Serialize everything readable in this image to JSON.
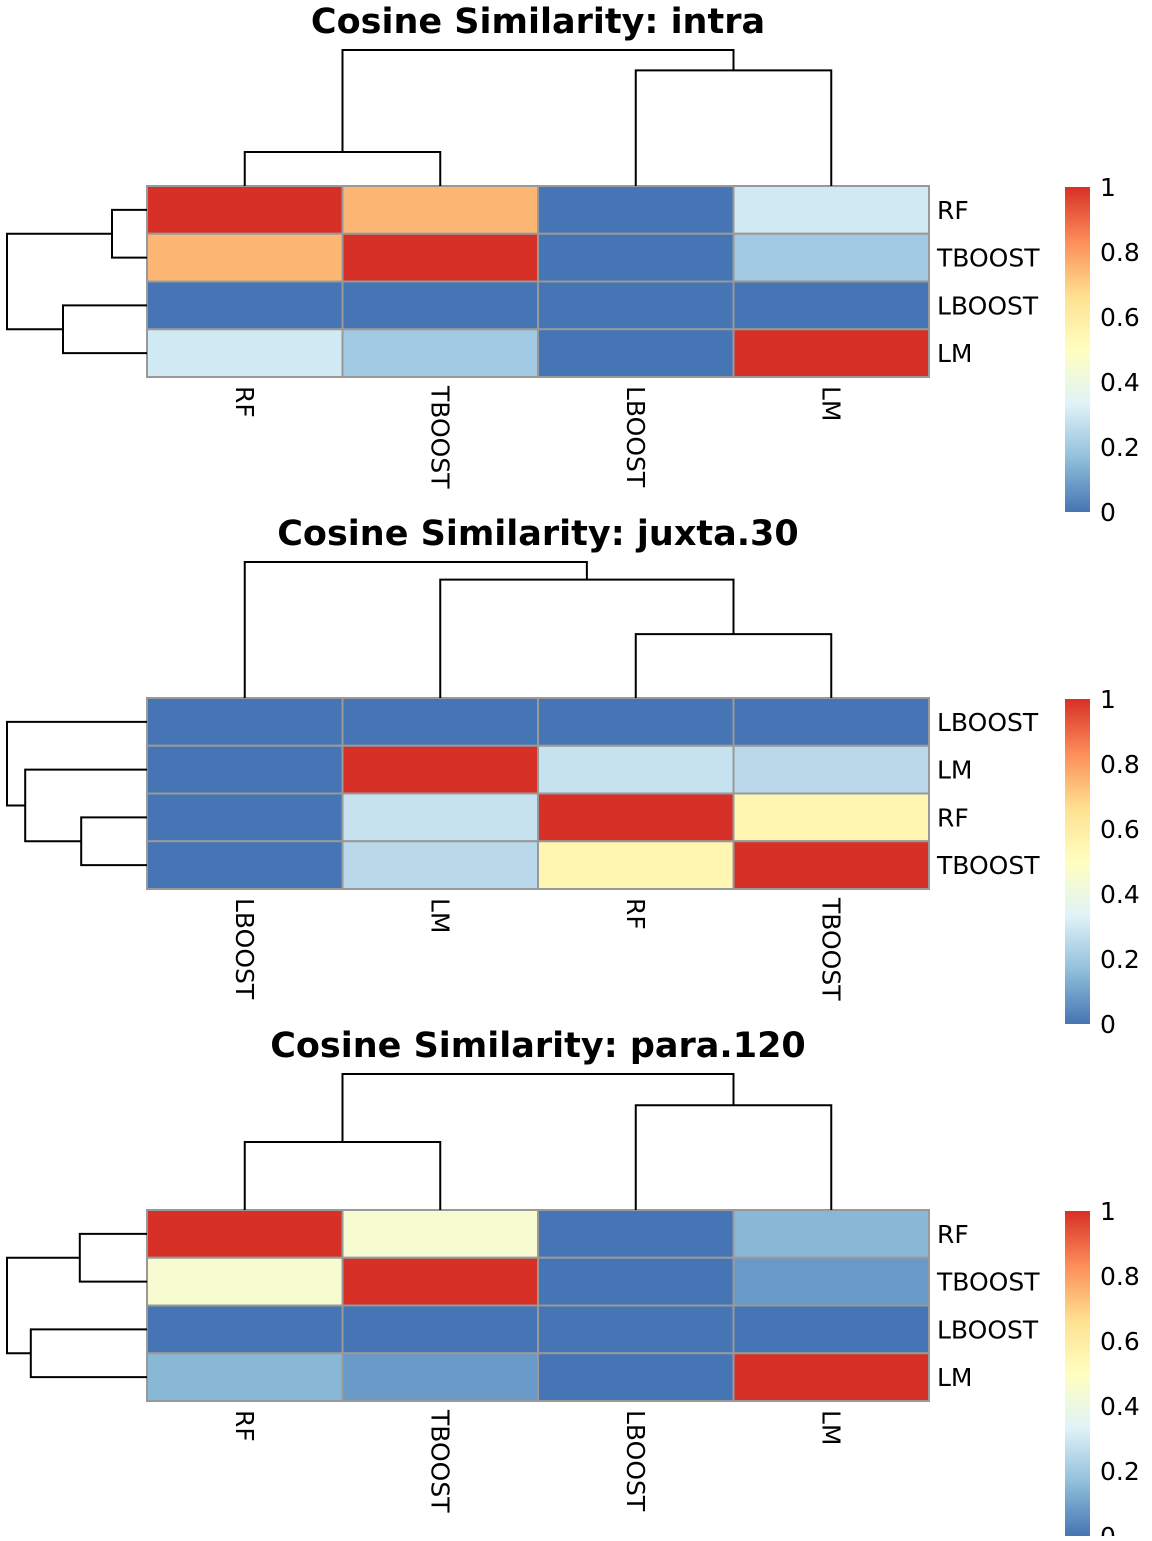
{
  "chart_data": [
    {
      "type": "heatmap",
      "title": "Cosine Similarity: intra",
      "rows": [
        "RF",
        "TBOOST",
        "LBOOST",
        "LM"
      ],
      "columns": [
        "RF",
        "TBOOST",
        "LBOOST",
        "LM"
      ],
      "values": [
        [
          1.0,
          0.75,
          0.0,
          0.3
        ],
        [
          0.75,
          1.0,
          0.0,
          0.2
        ],
        [
          0.0,
          0.0,
          0.0,
          0.0
        ],
        [
          0.3,
          0.2,
          0.0,
          1.0
        ]
      ],
      "row_dendrogram": [
        [
          0,
          1,
          0.25
        ],
        [
          2,
          3,
          0.6
        ],
        [
          4,
          5,
          1.0
        ]
      ],
      "col_dendrogram": [
        [
          0,
          1,
          0.25
        ],
        [
          2,
          3,
          0.85
        ],
        [
          4,
          5,
          1.0
        ]
      ],
      "color_scale": {
        "min": 0,
        "max": 1,
        "ticks": [
          "0",
          "0.2",
          "0.4",
          "0.6",
          "0.8",
          "1"
        ],
        "colors": [
          "#4575B4",
          "#91BFDB",
          "#E0F3F8",
          "#FFFFBF",
          "#FEE090",
          "#FC8D59",
          "#D73027"
        ]
      }
    },
    {
      "type": "heatmap",
      "title": "Cosine Similarity: juxta.30",
      "rows": [
        "LBOOST",
        "LM",
        "RF",
        "TBOOST"
      ],
      "columns": [
        "LBOOST",
        "LM",
        "RF",
        "TBOOST"
      ],
      "values": [
        [
          0.0,
          0.0,
          0.0,
          0.0
        ],
        [
          0.0,
          1.0,
          0.28,
          0.25
        ],
        [
          0.0,
          0.28,
          1.0,
          0.55
        ],
        [
          0.0,
          0.25,
          0.55,
          1.0
        ]
      ],
      "row_dendrogram": [
        [
          2,
          3,
          0.47
        ],
        [
          1,
          4,
          0.87
        ],
        [
          0,
          5,
          1.0
        ]
      ],
      "col_dendrogram": [
        [
          2,
          3,
          0.47
        ],
        [
          1,
          4,
          0.87
        ],
        [
          0,
          5,
          1.0
        ]
      ],
      "color_scale": {
        "min": 0,
        "max": 1,
        "ticks": [
          "0",
          "0.2",
          "0.4",
          "0.6",
          "0.8",
          "1"
        ],
        "colors": [
          "#4575B4",
          "#91BFDB",
          "#E0F3F8",
          "#FFFFBF",
          "#FEE090",
          "#FC8D59",
          "#D73027"
        ]
      }
    },
    {
      "type": "heatmap",
      "title": "Cosine Similarity: para.120",
      "rows": [
        "RF",
        "TBOOST",
        "LBOOST",
        "LM"
      ],
      "columns": [
        "RF",
        "TBOOST",
        "LBOOST",
        "LM"
      ],
      "values": [
        [
          1.0,
          0.45,
          0.0,
          0.15
        ],
        [
          0.45,
          1.0,
          0.0,
          0.08
        ],
        [
          0.0,
          0.0,
          0.0,
          0.0
        ],
        [
          0.15,
          0.08,
          0.0,
          1.0
        ]
      ],
      "row_dendrogram": [
        [
          0,
          1,
          0.48
        ],
        [
          2,
          3,
          0.83
        ],
        [
          4,
          5,
          1.0
        ]
      ],
      "col_dendrogram": [
        [
          0,
          1,
          0.5
        ],
        [
          2,
          3,
          0.77
        ],
        [
          4,
          5,
          1.0
        ]
      ],
      "color_scale": {
        "min": 0,
        "max": 1,
        "ticks": [
          "0",
          "0.2",
          "0.4",
          "0.6",
          "0.8",
          "1"
        ],
        "colors": [
          "#4575B4",
          "#91BFDB",
          "#E0F3F8",
          "#FFFFBF",
          "#FEE090",
          "#FC8D59",
          "#D73027"
        ]
      }
    }
  ]
}
